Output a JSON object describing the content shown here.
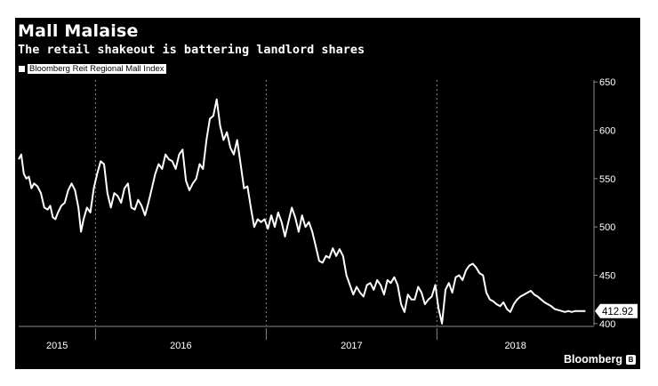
{
  "brand": {
    "name": "Bloomberg",
    "mark_icon": "bloomberg-b-icon",
    "mark_glyph": "B"
  },
  "colors": {
    "background": "#000000",
    "line": "#ffffff",
    "grid": "#8a8a8a",
    "text": "#ffffff"
  },
  "chart_data": {
    "type": "line",
    "title": "Mall Malaise",
    "subtitle": "The retail shakeout is battering landlord shares",
    "legend": [
      "Bloomberg Reit Regional Mall Index"
    ],
    "legend_position": "top-left",
    "xlabel": "",
    "ylabel": "",
    "ylim": [
      398,
      652
    ],
    "yticks": [
      400,
      450,
      500,
      550,
      600,
      650
    ],
    "y_axis_side": "right",
    "grid": "vertical dashed at each tick",
    "x_range": [
      2014.8,
      2018.17
    ],
    "x_ticks": [
      {
        "label": "2015",
        "start": 2014.8,
        "end": 2015.25
      },
      {
        "label": "2016",
        "start": 2015.25,
        "end": 2016.25
      },
      {
        "label": "2017",
        "start": 2016.25,
        "end": 2017.25
      },
      {
        "label": "2018",
        "start": 2017.25,
        "end": 2018.17
      }
    ],
    "last_value_label": "412.92",
    "series": [
      {
        "name": "Bloomberg Reit Regional Mall Index",
        "x": [
          2014.8,
          2014.815,
          2014.83,
          2014.845,
          2014.86,
          2014.875,
          2014.89,
          2014.91,
          2014.93,
          2014.95,
          2014.97,
          2014.985,
          2015.0,
          2015.015,
          2015.03,
          2015.05,
          2015.07,
          2015.09,
          2015.11,
          2015.13,
          2015.15,
          2015.165,
          2015.18,
          2015.2,
          2015.22,
          2015.24,
          2015.26,
          2015.28,
          2015.3,
          2015.32,
          2015.34,
          2015.36,
          2015.38,
          2015.4,
          2015.42,
          2015.44,
          2015.46,
          2015.48,
          2015.5,
          2015.52,
          2015.54,
          2015.56,
          2015.58,
          2015.6,
          2015.62,
          2015.64,
          2015.66,
          2015.68,
          2015.7,
          2015.72,
          2015.74,
          2015.76,
          2015.78,
          2015.8,
          2015.82,
          2015.84,
          2015.86,
          2015.88,
          2015.9,
          2015.92,
          2015.94,
          2015.96,
          2015.98,
          2016.0,
          2016.02,
          2016.04,
          2016.06,
          2016.08,
          2016.1,
          2016.12,
          2016.14,
          2016.16,
          2016.18,
          2016.2,
          2016.22,
          2016.24,
          2016.26,
          2016.28,
          2016.3,
          2016.32,
          2016.34,
          2016.36,
          2016.38,
          2016.4,
          2016.42,
          2016.44,
          2016.46,
          2016.48,
          2016.5,
          2016.52,
          2016.54,
          2016.56,
          2016.58,
          2016.6,
          2016.62,
          2016.64,
          2016.66,
          2016.68,
          2016.7,
          2016.72,
          2016.74,
          2016.76,
          2016.78,
          2016.8,
          2016.82,
          2016.84,
          2016.86,
          2016.88,
          2016.9,
          2016.92,
          2016.94,
          2016.96,
          2016.98,
          2017.0,
          2017.02,
          2017.04,
          2017.06,
          2017.08,
          2017.1,
          2017.12,
          2017.14,
          2017.16,
          2017.18,
          2017.2,
          2017.22,
          2017.24,
          2017.26,
          2017.28,
          2017.3,
          2017.32,
          2017.34,
          2017.36,
          2017.38,
          2017.4,
          2017.42,
          2017.44,
          2017.46,
          2017.48,
          2017.5,
          2017.52,
          2017.54,
          2017.56,
          2017.58,
          2017.6,
          2017.62,
          2017.64,
          2017.66,
          2017.68,
          2017.7,
          2017.72,
          2017.74,
          2017.76,
          2017.78,
          2017.8,
          2017.82,
          2017.84,
          2017.86,
          2017.88,
          2017.9,
          2017.92,
          2017.94,
          2017.96,
          2017.98,
          2018.0,
          2018.02,
          2018.04,
          2018.06,
          2018.08,
          2018.1,
          2018.12
        ],
        "values": [
          570,
          575,
          555,
          550,
          552,
          540,
          545,
          542,
          535,
          520,
          518,
          522,
          510,
          508,
          515,
          522,
          525,
          538,
          545,
          538,
          520,
          495,
          508,
          520,
          515,
          540,
          555,
          568,
          565,
          535,
          520,
          535,
          532,
          525,
          540,
          545,
          520,
          518,
          528,
          522,
          512,
          525,
          540,
          555,
          565,
          560,
          575,
          570,
          568,
          560,
          575,
          580,
          548,
          538,
          545,
          550,
          565,
          560,
          590,
          612,
          615,
          632,
          605,
          590,
          598,
          582,
          575,
          590,
          565,
          540,
          542,
          520,
          500,
          508,
          505,
          508,
          498,
          512,
          500,
          515,
          505,
          490,
          505,
          520,
          510,
          495,
          512,
          500,
          505,
          495,
          480,
          465,
          463,
          470,
          468,
          478,
          470,
          477,
          470,
          450,
          440,
          430,
          438,
          432,
          428,
          440,
          442,
          435,
          445,
          440,
          430,
          445,
          442,
          448,
          440,
          420,
          412,
          430,
          425,
          425,
          438,
          432,
          420,
          425,
          428,
          440,
          415,
          400,
          435,
          442,
          432,
          448,
          450,
          445,
          455,
          460,
          462,
          458,
          452,
          450,
          432,
          425,
          423,
          420,
          418,
          422,
          415,
          412,
          420,
          425,
          428,
          430,
          432,
          434,
          430,
          428,
          425,
          422,
          420,
          418,
          415,
          414,
          413,
          412,
          413,
          412,
          413,
          413,
          413,
          413
        ]
      }
    ]
  }
}
